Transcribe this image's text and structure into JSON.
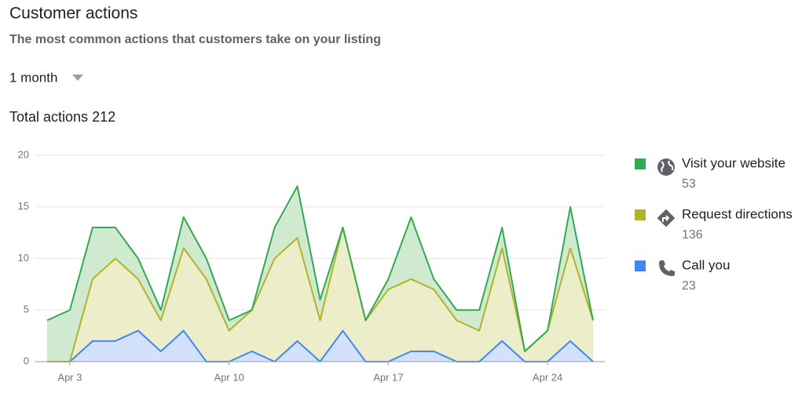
{
  "chart_data": {
    "type": "stacked_area",
    "title": "Customer actions",
    "subtitle": "The most common actions that customers take on your listing",
    "period": "1 month",
    "total_label": "Total actions",
    "total": 212,
    "categories": [
      null,
      "Apr 3",
      null,
      null,
      null,
      null,
      null,
      null,
      "Apr 10",
      null,
      null,
      null,
      null,
      null,
      null,
      "Apr 17",
      null,
      null,
      null,
      null,
      null,
      null,
      "Apr 24",
      null,
      null
    ],
    "series": [
      {
        "name": "Call you",
        "total": 23,
        "color": "#4285f4",
        "fill": "#d2e2fc",
        "values": [
          0,
          0,
          2,
          2,
          3,
          1,
          3,
          0,
          0,
          1,
          0,
          2,
          0,
          3,
          0,
          0,
          1,
          1,
          0,
          0,
          2,
          0,
          0,
          2,
          0
        ]
      },
      {
        "name": "Request directions",
        "total": 136,
        "color": "#afb42b",
        "fill": "#ecedc9",
        "values": [
          0,
          0,
          6,
          8,
          5,
          3,
          8,
          8,
          3,
          4,
          10,
          10,
          4,
          10,
          4,
          7,
          7,
          6,
          4,
          3,
          9,
          1,
          3,
          9,
          4
        ]
      },
      {
        "name": "Visit your website",
        "total": 53,
        "color": "#34a853",
        "fill": "#d0eacf",
        "values": [
          4,
          5,
          5,
          3,
          2,
          1,
          3,
          2,
          1,
          0,
          3,
          5,
          2,
          0,
          0,
          1,
          6,
          1,
          1,
          2,
          2,
          0,
          0,
          4,
          0
        ]
      }
    ],
    "ylim": [
      0,
      20
    ],
    "yticks": [
      0,
      5,
      10,
      15,
      20
    ],
    "grid": true,
    "legend": "right"
  }
}
